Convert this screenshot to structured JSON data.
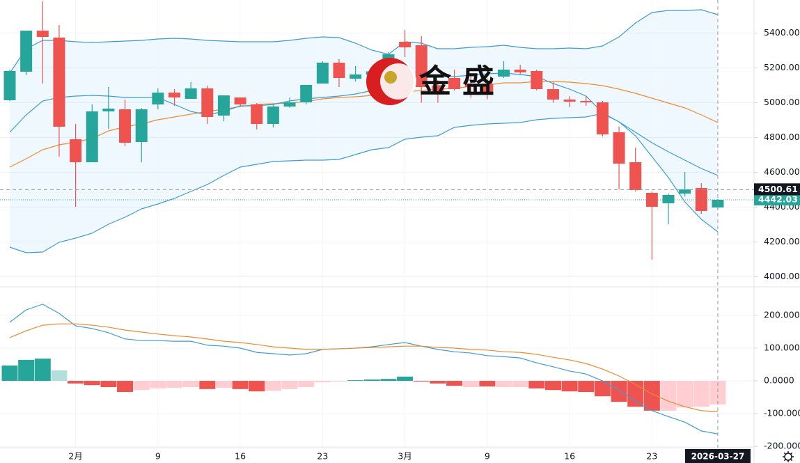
{
  "chart_data": [
    {
      "type": "candlestick",
      "categories": [
        null,
        null,
        null,
        null,
        "2月",
        null,
        null,
        null,
        null,
        "9",
        null,
        null,
        null,
        null,
        "16",
        null,
        null,
        null,
        null,
        "23",
        null,
        null,
        null,
        null,
        "3月",
        null,
        null,
        null,
        null,
        "9",
        null,
        null,
        null,
        null,
        "16",
        null,
        null,
        null,
        null,
        "23",
        null,
        null,
        null,
        "2026-03-27"
      ],
      "open": [
        5014,
        5178,
        5414,
        5374,
        4790,
        4658,
        4950,
        4962,
        4774,
        4990,
        5058,
        5022,
        5082,
        4926,
        5030,
        4990,
        4878,
        4978,
        5002,
        5110,
        5230,
        5138,
        5160,
        5190,
        5350,
        5330,
        5100,
        5142,
        5110,
        5110,
        5150,
        5190,
        5182,
        5078,
        5018,
        5010,
        5002,
        4830,
        4658,
        4482,
        4422,
        4478,
        4510,
        4398
      ],
      "high": [
        5190,
        5414,
        5582,
        5446,
        4878,
        4990,
        5090,
        5018,
        4970,
        5082,
        5078,
        5118,
        5098,
        5042,
        5030,
        4998,
        4990,
        5030,
        5102,
        5238,
        5250,
        5210,
        5200,
        5290,
        5418,
        5382,
        5130,
        5190,
        5160,
        5140,
        5238,
        5218,
        5190,
        5118,
        5038,
        5038,
        5010,
        4862,
        4742,
        4490,
        4478,
        4602,
        4538,
        4446
      ],
      "low": [
        5010,
        5158,
        5110,
        4690,
        4402,
        4658,
        4850,
        4750,
        4658,
        4962,
        4982,
        5022,
        4878,
        4894,
        4982,
        4846,
        4858,
        4970,
        4990,
        5110,
        5090,
        5122,
        5140,
        5180,
        5262,
        5000,
        5000,
        5070,
        5030,
        5020,
        5142,
        5162,
        5070,
        5000,
        4974,
        4982,
        4806,
        4502,
        4490,
        4098,
        4302,
        4462,
        4362,
        4382
      ],
      "close": [
        5182,
        5414,
        5378,
        4862,
        4658,
        4950,
        4966,
        4770,
        4962,
        5058,
        5030,
        5082,
        4918,
        5042,
        4990,
        4878,
        4978,
        5002,
        5102,
        5230,
        5142,
        5162,
        5180,
        5278,
        5318,
        5090,
        5060,
        5078,
        5090,
        5060,
        5190,
        5174,
        5078,
        5018,
        5006,
        5002,
        4818,
        4650,
        4498,
        4402,
        4470,
        4502,
        4378,
        4442
      ],
      "up_color": "#26a69a",
      "down_color": "#ef5350",
      "band_fill": "rgba(33,150,243,0.07)",
      "series": [
        {
          "color": "#3d9bd6",
          "values": [
            5170,
            5310,
            5358,
            5358,
            5350,
            5346,
            5350,
            5354,
            5358,
            5366,
            5370,
            5366,
            5358,
            5354,
            5350,
            5350,
            5350,
            5358,
            5370,
            5378,
            5374,
            5342,
            5302,
            5278,
            5350,
            5342,
            5310,
            5310,
            5318,
            5322,
            5330,
            5318,
            5310,
            5310,
            5314,
            5310,
            5326,
            5378,
            5458,
            5518,
            5530,
            5530,
            5534,
            5506
          ]
        },
        {
          "color": "#ef8a2c",
          "values": [
            4630,
            4678,
            4730,
            4758,
            4774,
            4794,
            4838,
            4862,
            4878,
            4902,
            4918,
            4934,
            4950,
            4962,
            4978,
            4990,
            4994,
            4998,
            5006,
            5022,
            5030,
            5034,
            5042,
            5050,
            5062,
            5070,
            5078,
            5082,
            5094,
            5102,
            5114,
            5114,
            5122,
            5122,
            5118,
            5110,
            5098,
            5078,
            5054,
            5026,
            4998,
            4970,
            4930,
            4886
          ]
        },
        {
          "color": "#3d9bd6",
          "values": [
            4830,
            4930,
            5010,
            5030,
            5038,
            5042,
            5038,
            5030,
            5030,
            5030,
            4990,
            4950,
            4930,
            4950,
            4982,
            4982,
            4990,
            5010,
            5022,
            5030,
            5038,
            5050,
            5070,
            5090,
            5130,
            5158,
            5150,
            5150,
            5158,
            5166,
            5170,
            5162,
            5150,
            5110,
            5078,
            5038,
            4942,
            4890,
            4830,
            4770,
            4718,
            4670,
            4622,
            4582
          ]
        },
        {
          "color": "#3d9bd6",
          "values": [
            4170,
            4138,
            4142,
            4198,
            4222,
            4250,
            4302,
            4342,
            4390,
            4418,
            4450,
            4490,
            4530,
            4582,
            4630,
            4646,
            4662,
            4666,
            4670,
            4670,
            4674,
            4702,
            4730,
            4742,
            4790,
            4802,
            4810,
            4858,
            4870,
            4878,
            4882,
            4886,
            4902,
            4910,
            4914,
            4918,
            4938,
            4890,
            4810,
            4690,
            4570,
            4430,
            4330,
            4258
          ]
        }
      ],
      "ylim": [
        3950,
        5590
      ],
      "yticks": [
        {
          "value": 4000,
          "label": "4000.00"
        },
        {
          "value": 4200,
          "label": "4200.00"
        },
        {
          "value": 4400,
          "label": "4400.00"
        },
        {
          "value": 4600,
          "label": "4600.00"
        },
        {
          "value": 4800,
          "label": "4800.00"
        },
        {
          "value": 5000,
          "label": "5000.00"
        },
        {
          "value": 5200,
          "label": "5200.00"
        },
        {
          "value": 5400,
          "label": "5400.00"
        }
      ],
      "crosshair_price": 4500.61,
      "last_price": 4442.03,
      "grid": true,
      "watermark": "金 盛"
    },
    {
      "type": "macd",
      "histogram": {
        "values": [
          47,
          64,
          68,
          32,
          -8,
          -13,
          -19,
          -34,
          -28,
          -23,
          -21,
          -19,
          -25,
          -21,
          -25,
          -32,
          -30,
          -25,
          -19,
          -4,
          -2,
          2,
          4,
          6,
          13,
          -2,
          -8,
          -15,
          -19,
          -17,
          -19,
          -19,
          -23,
          -28,
          -32,
          -34,
          -47,
          -64,
          -79,
          -91,
          -91,
          -81,
          -79,
          -72
        ],
        "colors": [
          "#26a69a",
          "#26a69a",
          "#26a69a",
          "#b2dfdb",
          "#ef5350",
          "#ef5350",
          "#ef5350",
          "#ef5350",
          "#ffcdd2",
          "#ffcdd2",
          "#ffcdd2",
          "#ffcdd2",
          "#ef5350",
          "#ffcdd2",
          "#ef5350",
          "#ef5350",
          "#ffcdd2",
          "#ffcdd2",
          "#ffcdd2",
          "#ffcdd2",
          "#ffcdd2",
          "#26a69a",
          "#26a69a",
          "#26a69a",
          "#26a69a",
          "#ef5350",
          "#ef5350",
          "#ef5350",
          "#ffcdd2",
          "#ef5350",
          "#ffcdd2",
          "#ffcdd2",
          "#ef5350",
          "#ef5350",
          "#ef5350",
          "#ef5350",
          "#ef5350",
          "#ef5350",
          "#ef5350",
          "#ef5350",
          "#ffcdd2",
          "#ffcdd2",
          "#ffcdd2",
          "#ffcdd2"
        ]
      },
      "series": [
        {
          "color": "#3d9bd6",
          "values": [
            179,
            217,
            234,
            206,
            168,
            160,
            147,
            128,
            123,
            123,
            121,
            121,
            109,
            106,
            100,
            87,
            83,
            79,
            83,
            96,
            98,
            100,
            104,
            111,
            117,
            106,
            96,
            89,
            85,
            77,
            74,
            70,
            55,
            43,
            30,
            21,
            0,
            -28,
            -62,
            -91,
            -109,
            -126,
            -153,
            -162
          ]
        },
        {
          "color": "#ef8a2c",
          "values": [
            132,
            153,
            170,
            174,
            174,
            170,
            164,
            155,
            149,
            143,
            138,
            134,
            128,
            121,
            117,
            111,
            104,
            100,
            96,
            96,
            98,
            100,
            102,
            104,
            106,
            106,
            102,
            100,
            96,
            94,
            89,
            87,
            81,
            72,
            64,
            53,
            36,
            15,
            -11,
            -40,
            -62,
            -79,
            -91,
            -94
          ]
        }
      ],
      "ylim": [
        -204,
        285
      ],
      "yticks": [
        {
          "value": -200,
          "label": "-200.000"
        },
        {
          "value": -100,
          "label": "-100.000"
        },
        {
          "value": 0,
          "label": "0.0000"
        },
        {
          "value": 100,
          "label": "100.000"
        },
        {
          "value": 200,
          "label": "200.000"
        }
      ],
      "grid": true
    }
  ]
}
